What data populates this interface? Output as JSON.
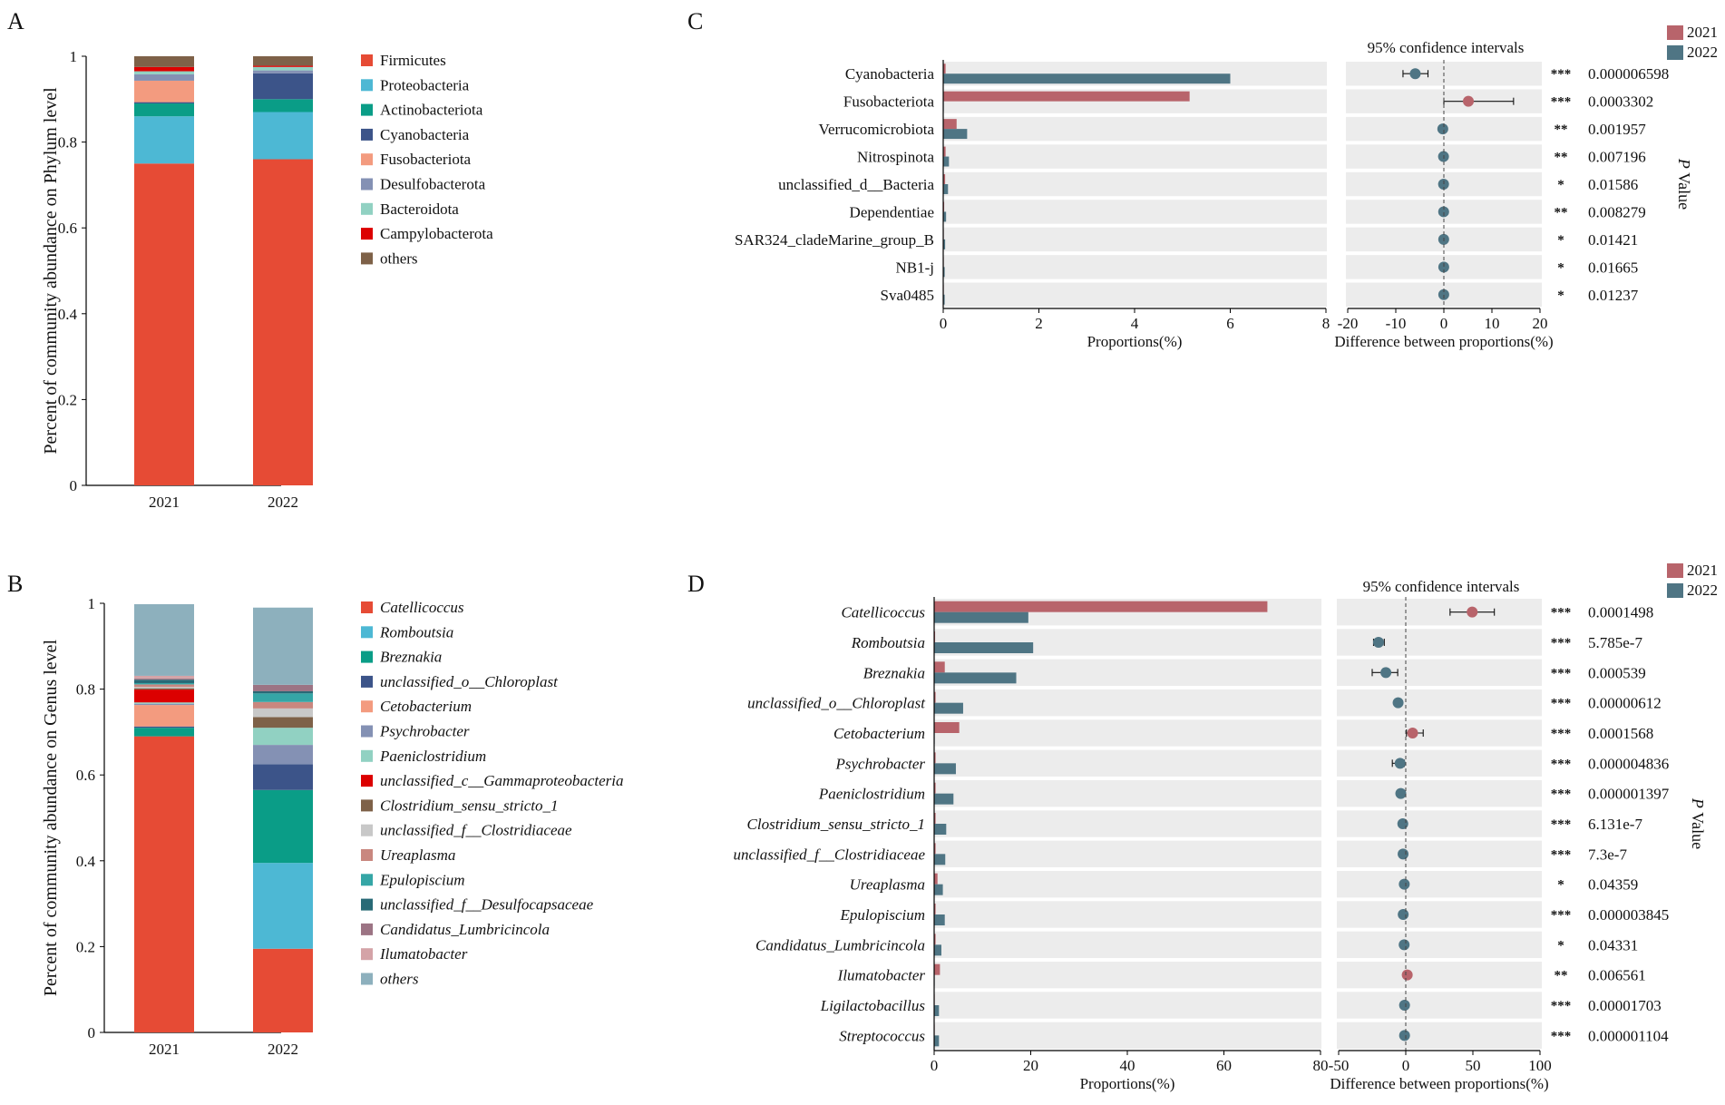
{
  "panel_labels": {
    "a": "A",
    "b": "B",
    "c": "C",
    "d": "D"
  },
  "colors": {
    "c2021": "#b8646b",
    "c2022": "#4f7584",
    "rowbg": "#ececec",
    "stars": "#e8232a",
    "taxa": [
      "#e64b35",
      "#4db8d4",
      "#0a9d87",
      "#3c5489",
      "#f39b7f",
      "#8491b4",
      "#91d1c2",
      "#dc0000",
      "#7e6148",
      "#c8c8c8",
      "#c9877f",
      "#35a6a6",
      "#286a76",
      "#9c7484",
      "#d4a3a7",
      "#8db0bd"
    ]
  },
  "chart_data": [
    {
      "id": "A",
      "type": "stacked-bar",
      "ylabel": "Percent of community abundance on Phylum level",
      "ylim": [
        0,
        1
      ],
      "yticks": [
        "0",
        "0.2",
        "0.4",
        "0.6",
        "0.8",
        "1"
      ],
      "categories": [
        "2021",
        "2022"
      ],
      "italic": false,
      "series": [
        {
          "name": "Firmicutes",
          "values": [
            0.75,
            0.76
          ]
        },
        {
          "name": "Proteobacteria",
          "values": [
            0.11,
            0.11
          ]
        },
        {
          "name": "Actinobacteriota",
          "values": [
            0.03,
            0.03
          ]
        },
        {
          "name": "Cyanobacteria",
          "values": [
            0.003,
            0.06
          ]
        },
        {
          "name": "Fusobacteriota",
          "values": [
            0.05,
            0.0
          ]
        },
        {
          "name": "Desulfobacterota",
          "values": [
            0.015,
            0.007
          ]
        },
        {
          "name": "Bacteroidota",
          "values": [
            0.007,
            0.008
          ]
        },
        {
          "name": "Campylobacterota",
          "values": [
            0.01,
            0.003
          ]
        },
        {
          "name": "others",
          "values": [
            0.025,
            0.022
          ]
        }
      ]
    },
    {
      "id": "B",
      "type": "stacked-bar",
      "ylabel": "Percent of community abundance on Genus level",
      "ylim": [
        0,
        1
      ],
      "yticks": [
        "0",
        "0.2",
        "0.4",
        "0.6",
        "0.8",
        "1"
      ],
      "categories": [
        "2021",
        "2022"
      ],
      "italic": true,
      "series": [
        {
          "name": "Catellicoccus",
          "values": [
            0.69,
            0.195
          ]
        },
        {
          "name": "Romboutsia",
          "values": [
            0.0,
            0.2
          ]
        },
        {
          "name": "Breznakia",
          "values": [
            0.02,
            0.17
          ]
        },
        {
          "name": "unclassified_o__Chloroplast",
          "values": [
            0.003,
            0.06
          ]
        },
        {
          "name": "Cetobacterium",
          "values": [
            0.05,
            0.0
          ]
        },
        {
          "name": "Psychrobacter",
          "values": [
            0.003,
            0.045
          ]
        },
        {
          "name": "Paeniclostridium",
          "values": [
            0.003,
            0.04
          ]
        },
        {
          "name": "unclassified_c__Gammaproteobacteria",
          "values": [
            0.03,
            0.0
          ]
        },
        {
          "name": "Clostridium_sensu_stricto_1",
          "values": [
            0.003,
            0.025
          ]
        },
        {
          "name": "unclassified_f__Clostridiaceae",
          "values": [
            0.003,
            0.02
          ]
        },
        {
          "name": "Ureaplasma",
          "values": [
            0.006,
            0.015
          ]
        },
        {
          "name": "Epulopiscium",
          "values": [
            0.003,
            0.02
          ]
        },
        {
          "name": "unclassified_f__Desulfocapsaceae",
          "values": [
            0.008,
            0.005
          ]
        },
        {
          "name": "Candidatus_Lumbricincola",
          "values": [
            0.003,
            0.015
          ]
        },
        {
          "name": "Ilumatobacter",
          "values": [
            0.006,
            0.0
          ]
        },
        {
          "name": "others",
          "values": [
            0.167,
            0.18
          ]
        }
      ]
    },
    {
      "id": "C",
      "type": "extended-error-bar",
      "legend": [
        "2021",
        "2022"
      ],
      "ci_title": "95% confidence intervals",
      "xlabel_left": "Proportions(%)",
      "xlabel_right": "Difference between proportions(%)",
      "pvalue_label": "P Value",
      "prop_xlim": [
        0,
        8
      ],
      "prop_ticks": [
        "0",
        "2",
        "4",
        "6",
        "8"
      ],
      "diff_xlim": [
        -20,
        20
      ],
      "diff_ticks": [
        "-20",
        "-10",
        "0",
        "10",
        "20"
      ],
      "italic": false,
      "rows": [
        {
          "name": "Cyanobacteria",
          "p2021": 0.05,
          "p2022": 6.0,
          "diff": -5.95,
          "lo": -8.5,
          "hi": -3.3,
          "sig": "***",
          "p": "0.000006598"
        },
        {
          "name": "Fusobacteriota",
          "p2021": 5.15,
          "p2022": 0.01,
          "diff": 5.1,
          "lo": 0.0,
          "hi": 14.5,
          "sig": "***",
          "p": "0.0003302"
        },
        {
          "name": "Verrucomicrobiota",
          "p2021": 0.28,
          "p2022": 0.5,
          "diff": -0.22,
          "lo": -0.4,
          "hi": -0.05,
          "sig": "**",
          "p": "0.001957"
        },
        {
          "name": "Nitrospinota",
          "p2021": 0.05,
          "p2022": 0.12,
          "diff": -0.07,
          "lo": -0.12,
          "hi": -0.02,
          "sig": "**",
          "p": "0.007196"
        },
        {
          "name": "unclassified_d__Bacteria",
          "p2021": 0.04,
          "p2022": 0.1,
          "diff": -0.06,
          "lo": -0.1,
          "hi": -0.01,
          "sig": "*",
          "p": "0.01586"
        },
        {
          "name": "Dependentiae",
          "p2021": 0.02,
          "p2022": 0.06,
          "diff": -0.04,
          "lo": -0.07,
          "hi": -0.01,
          "sig": "**",
          "p": "0.008279"
        },
        {
          "name": "SAR324_cladeMarine_group_B",
          "p2021": 0.01,
          "p2022": 0.04,
          "diff": -0.03,
          "lo": -0.06,
          "hi": -0.005,
          "sig": "*",
          "p": "0.01421"
        },
        {
          "name": "NB1-j",
          "p2021": 0.01,
          "p2022": 0.03,
          "diff": -0.02,
          "lo": -0.04,
          "hi": -0.005,
          "sig": "*",
          "p": "0.01665"
        },
        {
          "name": "Sva0485",
          "p2021": 0.01,
          "p2022": 0.03,
          "diff": -0.02,
          "lo": -0.04,
          "hi": -0.005,
          "sig": "*",
          "p": "0.01237"
        }
      ]
    },
    {
      "id": "D",
      "type": "extended-error-bar",
      "legend": [
        "2021",
        "2022"
      ],
      "ci_title": "95% confidence intervals",
      "xlabel_left": "Proportions(%)",
      "xlabel_right": "Difference between proportions(%)",
      "pvalue_label": "P Value",
      "prop_xlim": [
        0,
        80
      ],
      "prop_ticks": [
        "0",
        "20",
        "40",
        "60",
        "80"
      ],
      "diff_xlim": [
        -50,
        100
      ],
      "diff_ticks": [
        "-50",
        "0",
        "50",
        "100"
      ],
      "italic": true,
      "rows": [
        {
          "name": "Catellicoccus",
          "p2021": 69,
          "p2022": 19.5,
          "diff": 49.5,
          "lo": 33,
          "hi": 66,
          "sig": "***",
          "p": "0.0001498"
        },
        {
          "name": "Romboutsia",
          "p2021": 0.2,
          "p2022": 20.5,
          "diff": -20.3,
          "lo": -24,
          "hi": -16,
          "sig": "***",
          "p": "5.785e-7"
        },
        {
          "name": "Breznakia",
          "p2021": 2.2,
          "p2022": 17,
          "diff": -14.8,
          "lo": -25,
          "hi": -6,
          "sig": "***",
          "p": "0.000539"
        },
        {
          "name": "unclassified_o__Chloroplast",
          "p2021": 0.3,
          "p2022": 6,
          "diff": -5.7,
          "lo": -8,
          "hi": -3.5,
          "sig": "***",
          "p": "0.00000612"
        },
        {
          "name": "Cetobacterium",
          "p2021": 5.2,
          "p2022": 0.05,
          "diff": 5.1,
          "lo": 0.5,
          "hi": 13,
          "sig": "***",
          "p": "0.0001568"
        },
        {
          "name": "Psychrobacter",
          "p2021": 0.3,
          "p2022": 4.5,
          "diff": -4.2,
          "lo": -10,
          "hi": -1,
          "sig": "***",
          "p": "0.000004836"
        },
        {
          "name": "Paeniclostridium",
          "p2021": 0.3,
          "p2022": 4,
          "diff": -3.7,
          "lo": -5,
          "hi": -2.5,
          "sig": "***",
          "p": "0.000001397"
        },
        {
          "name": "Clostridium_sensu_stricto_1",
          "p2021": 0.3,
          "p2022": 2.5,
          "diff": -2.2,
          "lo": -3,
          "hi": -1.5,
          "sig": "***",
          "p": "6.131e-7"
        },
        {
          "name": "unclassified_f__Clostridiaceae",
          "p2021": 0.3,
          "p2022": 2.3,
          "diff": -2.0,
          "lo": -2.8,
          "hi": -1.2,
          "sig": "***",
          "p": "7.3e-7"
        },
        {
          "name": "Ureaplasma",
          "p2021": 0.7,
          "p2022": 1.8,
          "diff": -1.1,
          "lo": -2,
          "hi": -0.2,
          "sig": "*",
          "p": "0.04359"
        },
        {
          "name": "Epulopiscium",
          "p2021": 0.3,
          "p2022": 2.2,
          "diff": -1.9,
          "lo": -2.6,
          "hi": -1.2,
          "sig": "***",
          "p": "0.000003845"
        },
        {
          "name": "Candidatus_Lumbricincola",
          "p2021": 0.3,
          "p2022": 1.5,
          "diff": -1.2,
          "lo": -2.2,
          "hi": -0.2,
          "sig": "*",
          "p": "0.04331"
        },
        {
          "name": "Ilumatobacter",
          "p2021": 1.2,
          "p2022": 0.05,
          "diff": 1.1,
          "lo": 0.4,
          "hi": 1.8,
          "sig": "**",
          "p": "0.006561"
        },
        {
          "name": "Ligilactobacillus",
          "p2021": 0.1,
          "p2022": 1.0,
          "diff": -0.9,
          "lo": -1.3,
          "hi": -0.5,
          "sig": "***",
          "p": "0.00001703"
        },
        {
          "name": "Streptococcus",
          "p2021": 0.1,
          "p2022": 1.0,
          "diff": -0.9,
          "lo": -1.3,
          "hi": -0.5,
          "sig": "***",
          "p": "0.000001104"
        }
      ]
    }
  ]
}
